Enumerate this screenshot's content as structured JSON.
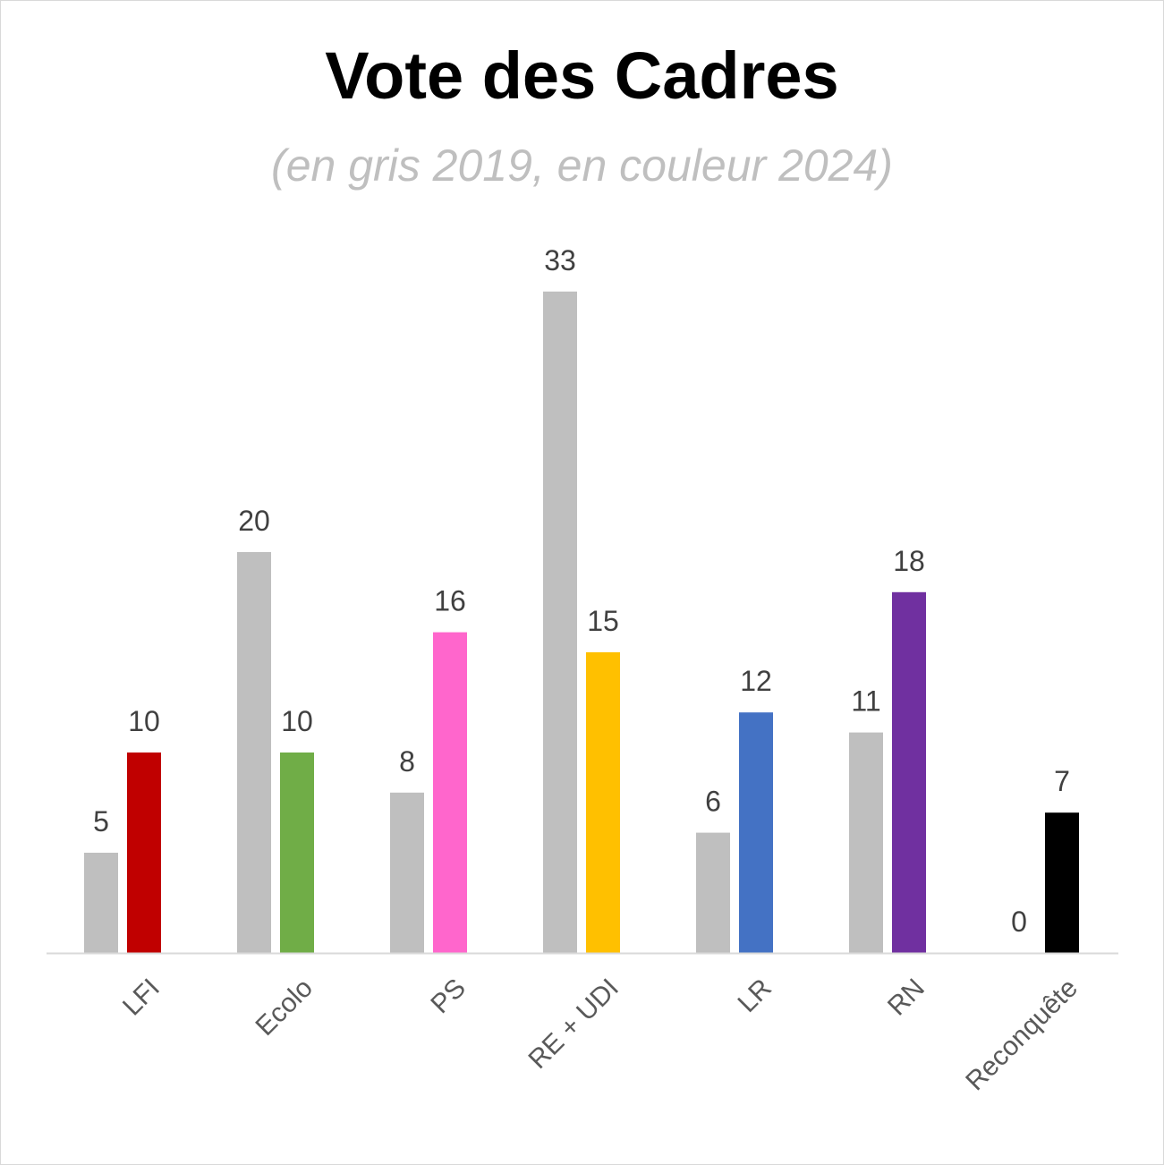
{
  "chart_data": {
    "type": "bar",
    "title": "Vote des Cadres",
    "subtitle": "(en gris 2019, en couleur 2024)",
    "xlabel": "",
    "ylabel": "",
    "ylim": [
      0,
      36
    ],
    "grid": false,
    "legend": "none",
    "categories": [
      "LFI",
      "Ecolo",
      "PS",
      "RE + UDI",
      "LR",
      "RN",
      "Reconquête"
    ],
    "series": [
      {
        "values": [
          5,
          20,
          8,
          33,
          6,
          11,
          0
        ],
        "colors": [
          "#bfbfbf",
          "#bfbfbf",
          "#bfbfbf",
          "#bfbfbf",
          "#bfbfbf",
          "#bfbfbf",
          "#bfbfbf"
        ]
      },
      {
        "values": [
          10,
          10,
          16,
          15,
          12,
          18,
          7
        ],
        "colors": [
          "#c00000",
          "#70ad47",
          "#ff66cc",
          "#ffc000",
          "#4472c4",
          "#7030a0",
          "#000000"
        ]
      }
    ]
  }
}
